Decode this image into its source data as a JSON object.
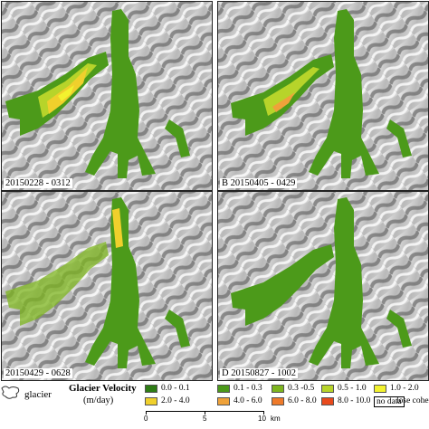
{
  "panels": [
    {
      "label": "20150228 - 0312"
    },
    {
      "label": "B 20150405 - 0429"
    },
    {
      "label": "20150429 - 0628"
    },
    {
      "label": "D 20150827 - 1002"
    }
  ],
  "legend": {
    "glacier_label": "glacier",
    "title": "Glacier Velocity",
    "unit": "(m/day)",
    "classes": [
      {
        "label": "0.0 - 0.1",
        "color": "#2e7d15"
      },
      {
        "label": "0.1 - 0.3",
        "color": "#4c9a1a"
      },
      {
        "label": "0.3 -0.5",
        "color": "#7db51f"
      },
      {
        "label": "0.5 - 1.0",
        "color": "#b7d42a"
      },
      {
        "label": "1.0 - 2.0",
        "color": "#f2f22e"
      },
      {
        "label": "2.0 - 4.0",
        "color": "#f0d02c"
      },
      {
        "label": "4.0 - 6.0",
        "color": "#efa23a"
      },
      {
        "label": "6.0 - 8.0",
        "color": "#ee7a2a"
      },
      {
        "label": "8.0 - 10.0",
        "color": "#e84a1c"
      },
      {
        "label": "no data",
        "color": "#ffffff"
      },
      {
        "label": "lose coherence",
        "color": "#ffffff"
      }
    ],
    "scale": {
      "ticks": [
        "0",
        "5",
        "10"
      ],
      "unit": "km"
    }
  }
}
